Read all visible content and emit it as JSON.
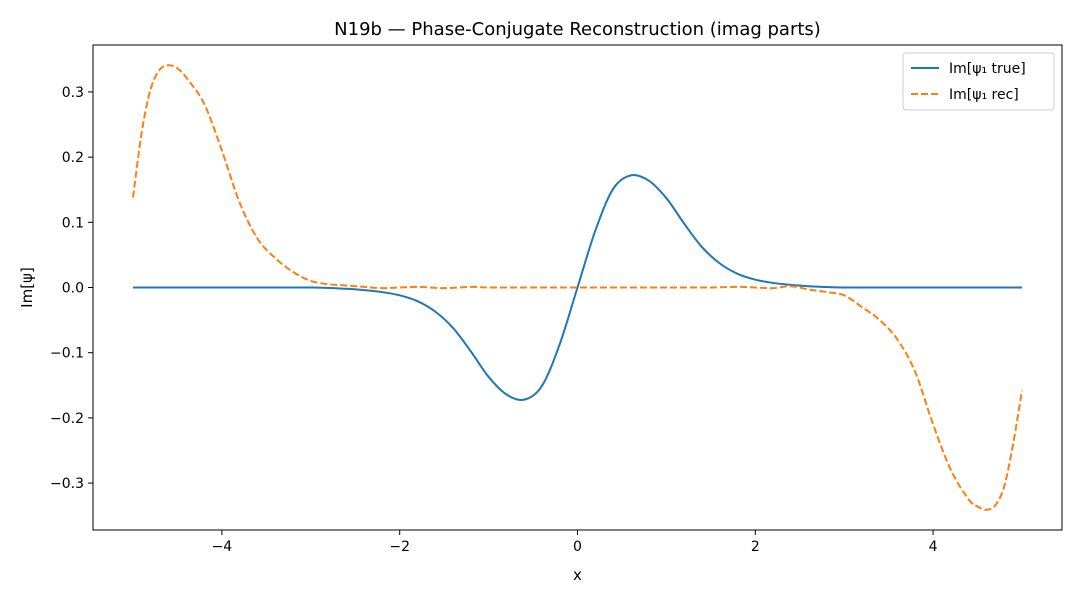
{
  "chart_data": {
    "type": "line",
    "title": "N19b — Phase-Conjugate Reconstruction (imag parts)",
    "xlabel": "x",
    "ylabel": "Im[ψ]",
    "xlim": [
      -5.45,
      5.45
    ],
    "ylim": [
      -0.372,
      0.372
    ],
    "xticks": [
      -4,
      -2,
      0,
      2,
      4
    ],
    "xtick_labels": [
      "−4",
      "−2",
      "0",
      "2",
      "4"
    ],
    "yticks": [
      -0.3,
      -0.2,
      -0.1,
      0.0,
      0.1,
      0.2,
      0.3
    ],
    "ytick_labels": [
      "−0.3",
      "−0.2",
      "−0.1",
      "0.0",
      "0.1",
      "0.2",
      "0.3"
    ],
    "grid": false,
    "legend_position": "top-right",
    "series": [
      {
        "name": "Im[ψ₁ true]",
        "color": "#1f77b4",
        "dash": "solid",
        "x": [
          -5.0,
          -4.0,
          -3.0,
          -2.6,
          -2.4,
          -2.2,
          -2.0,
          -1.8,
          -1.6,
          -1.4,
          -1.2,
          -1.0,
          -0.8,
          -0.6,
          -0.4,
          -0.2,
          0.0,
          0.2,
          0.4,
          0.6,
          0.8,
          1.0,
          1.2,
          1.4,
          1.6,
          1.8,
          2.0,
          2.2,
          2.4,
          2.6,
          3.0,
          4.0,
          5.0
        ],
        "y": [
          0.0,
          0.0,
          0.0,
          -0.002,
          -0.004,
          -0.007,
          -0.012,
          -0.021,
          -0.037,
          -0.062,
          -0.098,
          -0.137,
          -0.164,
          -0.172,
          -0.151,
          -0.087,
          0.0,
          0.087,
          0.151,
          0.172,
          0.164,
          0.137,
          0.098,
          0.062,
          0.037,
          0.021,
          0.012,
          0.007,
          0.004,
          0.002,
          0.0,
          0.0,
          0.0
        ]
      },
      {
        "name": "Im[ψ₁ rec]",
        "color": "#ff7f0e",
        "dash": "dashed",
        "x": [
          -5.0,
          -4.9,
          -4.8,
          -4.7,
          -4.6,
          -4.5,
          -4.4,
          -4.2,
          -4.0,
          -3.8,
          -3.6,
          -3.4,
          -3.2,
          -3.0,
          -2.8,
          -2.6,
          -2.4,
          -2.2,
          -2.0,
          -1.8,
          -1.5,
          -1.2,
          -1.0,
          -0.5,
          0.0,
          0.5,
          1.0,
          1.2,
          1.5,
          1.8,
          2.0,
          2.2,
          2.4,
          2.6,
          2.8,
          3.0,
          3.2,
          3.4,
          3.6,
          3.8,
          4.0,
          4.2,
          4.4,
          4.5,
          4.6,
          4.7,
          4.8,
          4.9,
          5.0
        ],
        "y": [
          0.138,
          0.24,
          0.305,
          0.334,
          0.341,
          0.336,
          0.322,
          0.282,
          0.21,
          0.13,
          0.075,
          0.045,
          0.024,
          0.01,
          0.005,
          0.003,
          0.001,
          -0.001,
          0.0,
          0.001,
          -0.001,
          0.001,
          0.0,
          0.0,
          0.0,
          0.0,
          0.0,
          0.0,
          0.0,
          0.001,
          0.0,
          -0.001,
          0.002,
          -0.003,
          -0.007,
          -0.012,
          -0.03,
          -0.05,
          -0.08,
          -0.13,
          -0.21,
          -0.28,
          -0.325,
          -0.336,
          -0.341,
          -0.334,
          -0.305,
          -0.24,
          -0.158
        ]
      }
    ]
  }
}
